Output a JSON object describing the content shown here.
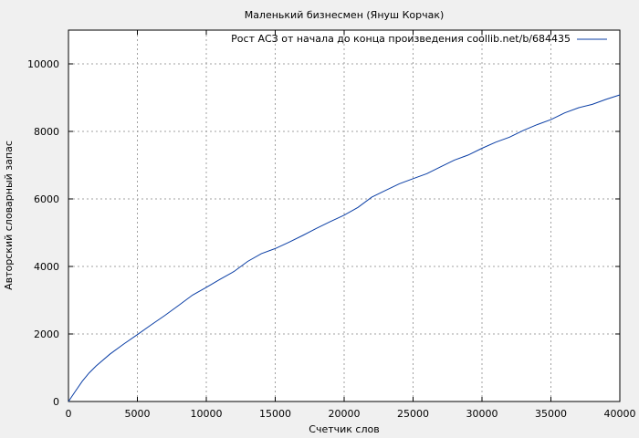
{
  "chart_data": {
    "type": "line",
    "title": "Маленький бизнесмен (Януш Корчак)",
    "xlabel": "Счетчик слов",
    "ylabel": "Авторский словарный запас",
    "xlim": [
      0,
      40000
    ],
    "ylim": [
      0,
      11000
    ],
    "xticks": [
      0,
      5000,
      10000,
      15000,
      20000,
      25000,
      30000,
      35000,
      40000
    ],
    "yticks": [
      0,
      2000,
      4000,
      6000,
      8000,
      10000
    ],
    "grid": true,
    "legend_position": "top-right",
    "colors": {
      "series": "#0a3ea5",
      "background": "#f0f0f0",
      "plot": "#ffffff"
    },
    "series": [
      {
        "name": "Рост АСЗ от начала до конца произведения coollib.net/b/684435",
        "x": [
          0,
          500,
          1000,
          1500,
          2000,
          3000,
          4000,
          5000,
          6000,
          7000,
          8000,
          9000,
          10000,
          11000,
          12000,
          13000,
          14000,
          15000,
          16000,
          17000,
          18000,
          19000,
          20000,
          21000,
          22000,
          23000,
          24000,
          25000,
          26000,
          27000,
          28000,
          29000,
          30000,
          31000,
          32000,
          33000,
          34000,
          35000,
          36000,
          37000,
          38000,
          39000,
          40000
        ],
        "y": [
          0,
          300,
          600,
          850,
          1050,
          1400,
          1700,
          1980,
          2270,
          2550,
          2850,
          3150,
          3380,
          3620,
          3850,
          4150,
          4380,
          4530,
          4720,
          4920,
          5130,
          5330,
          5520,
          5750,
          6050,
          6250,
          6450,
          6600,
          6750,
          6950,
          7150,
          7300,
          7500,
          7680,
          7830,
          8030,
          8200,
          8350,
          8550,
          8700,
          8800,
          8950,
          9080
        ]
      }
    ]
  }
}
